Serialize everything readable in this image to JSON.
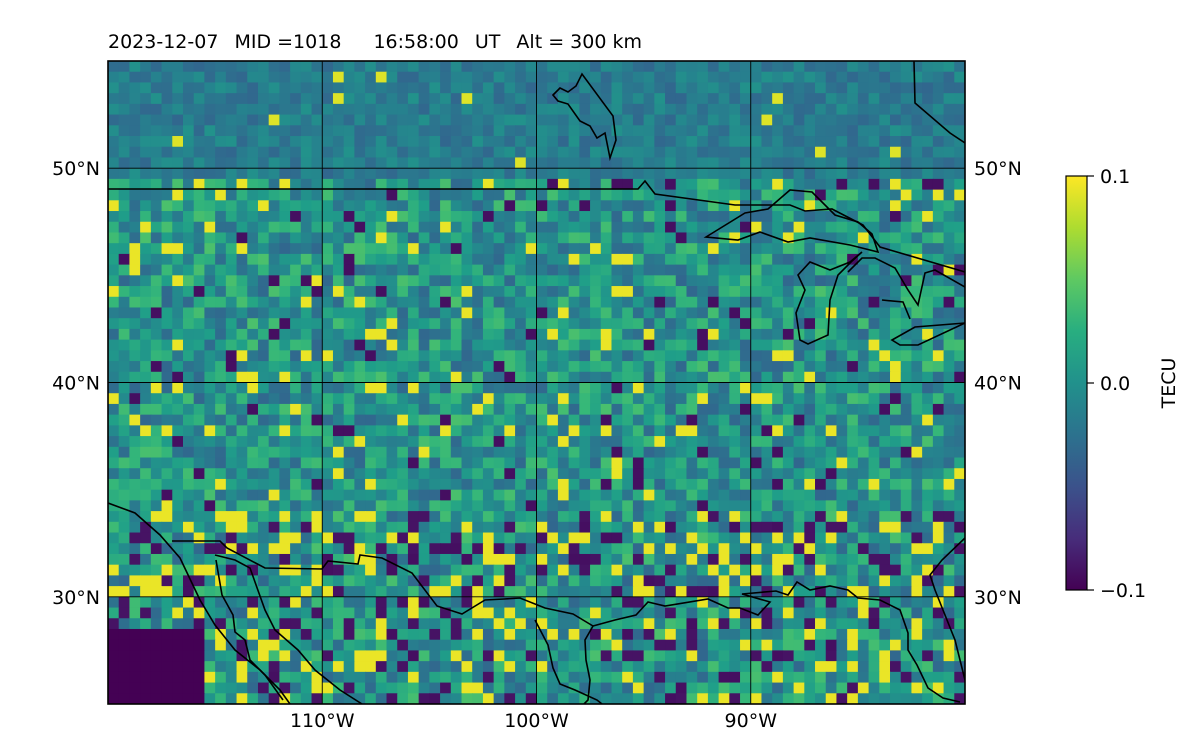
{
  "header": {
    "date": "2023-12-07",
    "mid": "MID =1018",
    "time": "16:58:00",
    "time_zone": "UT",
    "altitude": "Alt = 300 km"
  },
  "map": {
    "lon_range": [
      -120,
      -80
    ],
    "lat_range": [
      25,
      55
    ],
    "lon_ticks": [
      -110,
      -100,
      -90
    ],
    "lat_ticks": [
      30,
      40,
      50
    ],
    "lon_tick_labels": [
      "110°W",
      "100°W",
      "90°W"
    ],
    "lat_tick_labels": [
      "30°N",
      "40°N",
      "50°N"
    ],
    "grid": true,
    "cell_size_deg": 0.5,
    "colormap": "viridis",
    "coastline_color": "#000000"
  },
  "colorbar": {
    "label": "TECU",
    "min": -0.1,
    "max": 0.1,
    "tick_labels": [
      "0.1",
      "0.0",
      "−0.1"
    ]
  }
}
